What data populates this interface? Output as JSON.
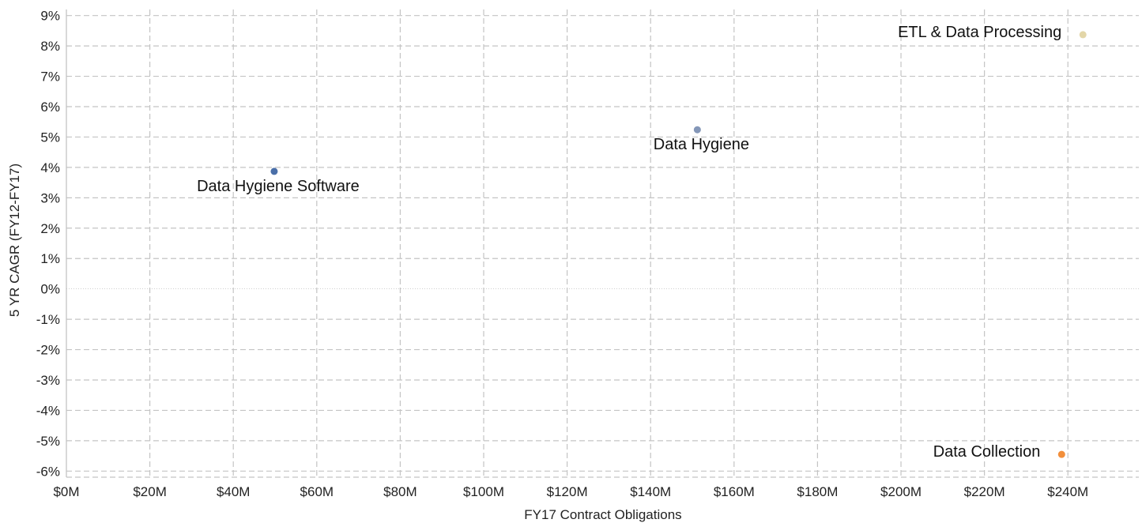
{
  "chart_data": {
    "type": "scatter",
    "title": "",
    "xlabel": "FY17 Contract Obligations",
    "ylabel": "5 YR CAGR (FY12-FY17)",
    "xlim": [
      0,
      257
    ],
    "ylim": [
      -6.2,
      9.2
    ],
    "x_unit": "$M",
    "y_unit": "%",
    "grid": true,
    "x_ticks": [
      {
        "value": 0,
        "label": "$0M"
      },
      {
        "value": 20,
        "label": "$20M"
      },
      {
        "value": 40,
        "label": "$40M"
      },
      {
        "value": 60,
        "label": "$60M"
      },
      {
        "value": 80,
        "label": "$80M"
      },
      {
        "value": 100,
        "label": "$100M"
      },
      {
        "value": 120,
        "label": "$120M"
      },
      {
        "value": 140,
        "label": "$140M"
      },
      {
        "value": 160,
        "label": "$160M"
      },
      {
        "value": 180,
        "label": "$180M"
      },
      {
        "value": 200,
        "label": "$200M"
      },
      {
        "value": 220,
        "label": "$220M"
      },
      {
        "value": 240,
        "label": "$240M"
      }
    ],
    "y_ticks": [
      {
        "value": 9,
        "label": "9%"
      },
      {
        "value": 8,
        "label": "8%"
      },
      {
        "value": 7,
        "label": "7%"
      },
      {
        "value": 6,
        "label": "6%"
      },
      {
        "value": 5,
        "label": "5%"
      },
      {
        "value": 4,
        "label": "4%"
      },
      {
        "value": 3,
        "label": "3%"
      },
      {
        "value": 2,
        "label": "2%"
      },
      {
        "value": 1,
        "label": "1%"
      },
      {
        "value": 0,
        "label": "0%"
      },
      {
        "value": -1,
        "label": "-1%"
      },
      {
        "value": -2,
        "label": "-2%"
      },
      {
        "value": -3,
        "label": "-3%"
      },
      {
        "value": -4,
        "label": "-4%"
      },
      {
        "value": -5,
        "label": "-5%"
      },
      {
        "value": -6,
        "label": "-6%"
      }
    ],
    "points": [
      {
        "name": "Data Hygiene Software",
        "x": 49.8,
        "y": 3.87,
        "color": "#4a6fa8",
        "label_anchor": "below"
      },
      {
        "name": "Data Hygiene",
        "x": 151.2,
        "y": 5.24,
        "color": "#8497b8",
        "label_anchor": "below"
      },
      {
        "name": "ETL & Data Processing",
        "x": 243.6,
        "y": 8.37,
        "color": "#e3d6a8",
        "label_anchor": "left"
      },
      {
        "name": "Data Collection",
        "x": 238.5,
        "y": -5.45,
        "color": "#f28f3b",
        "label_anchor": "left"
      }
    ]
  }
}
